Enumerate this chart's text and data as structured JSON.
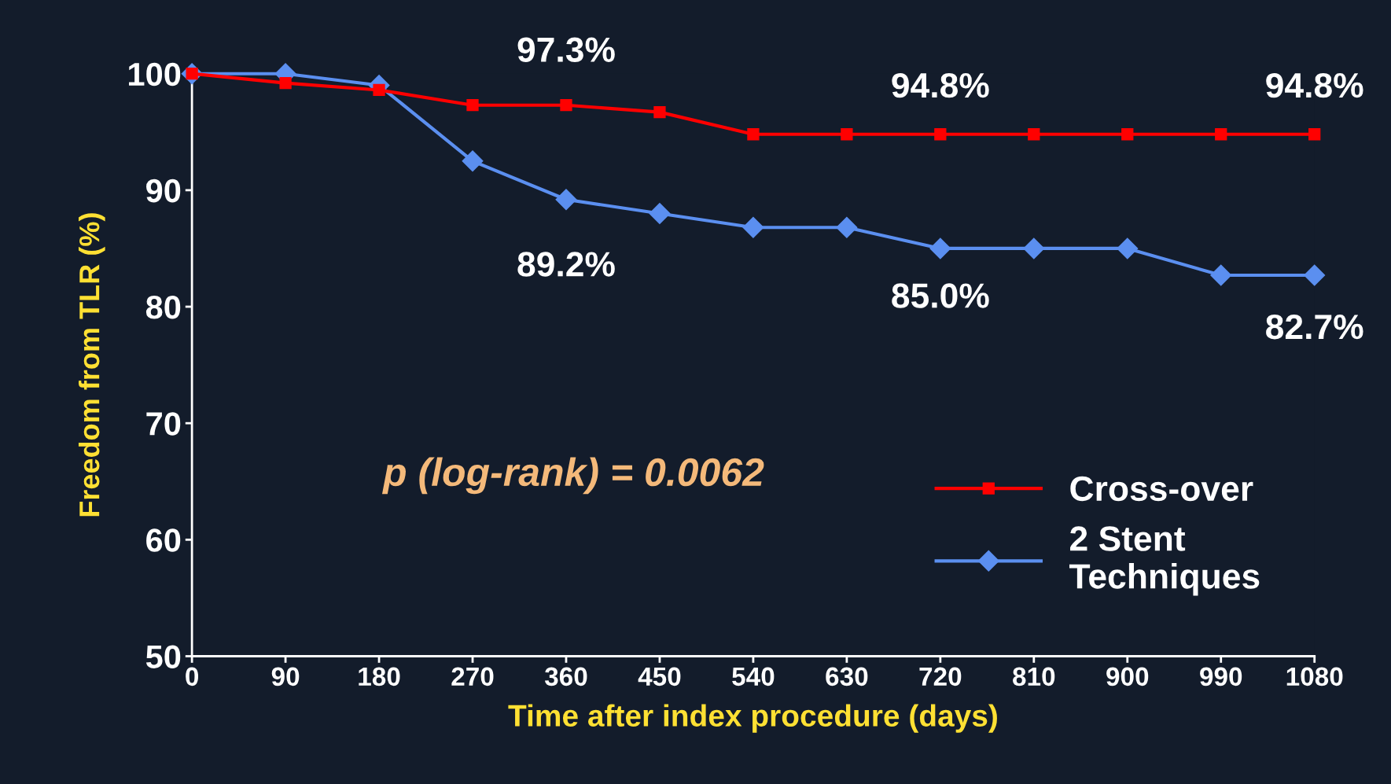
{
  "chart_data": {
    "type": "line",
    "xlabel": "Time after index procedure (days)",
    "ylabel": "Freedom from TLR (%)",
    "x": [
      0,
      90,
      180,
      270,
      360,
      450,
      540,
      630,
      720,
      810,
      900,
      990,
      1080
    ],
    "series": [
      {
        "name": "Cross-over",
        "color": "#ff0000",
        "marker": "square",
        "values": [
          100,
          99.2,
          98.6,
          97.3,
          97.3,
          96.7,
          94.8,
          94.8,
          94.8,
          94.8,
          94.8,
          94.8,
          94.8
        ]
      },
      {
        "name": "2 Stent\nTechniques",
        "color": "#5b8ff0",
        "marker": "diamond",
        "values": [
          100,
          100,
          99.0,
          92.5,
          89.2,
          88.0,
          86.8,
          86.8,
          85.0,
          85.0,
          85.0,
          82.7,
          82.7
        ]
      }
    ],
    "xlim": [
      0,
      1080
    ],
    "xticks": [
      0,
      90,
      180,
      270,
      360,
      450,
      540,
      630,
      720,
      810,
      900,
      990,
      1080
    ],
    "ylim": [
      50,
      100
    ],
    "yticks": [
      50,
      60,
      70,
      80,
      90,
      100
    ],
    "grid": false,
    "legend": "lower right",
    "line_style": "solid",
    "annotations": [
      {
        "text": "97.3%",
        "x": 360,
        "y": 97.3
      },
      {
        "text": "94.8%",
        "x": 720,
        "y": 94.8
      },
      {
        "text": "94.8%",
        "x": 1080,
        "y": 94.8
      },
      {
        "text": "89.2%",
        "x": 360,
        "y": 89.2
      },
      {
        "text": "85.0%",
        "x": 720,
        "y": 85.0
      },
      {
        "text": "82.7%",
        "x": 1080,
        "y": 82.7
      },
      "p (log-rank) = 0.0062"
    ]
  }
}
